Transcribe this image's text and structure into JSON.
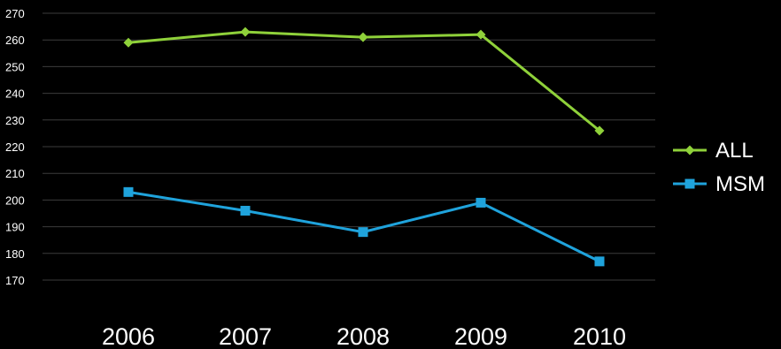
{
  "chart_data": {
    "type": "line",
    "categories": [
      "2006",
      "2007",
      "2008",
      "2009",
      "2010"
    ],
    "series": [
      {
        "name": "ALL",
        "values": [
          259,
          263,
          261,
          262,
          226
        ],
        "color": "#8fd13a",
        "marker": "diamond"
      },
      {
        "name": "MSM",
        "values": [
          203,
          196,
          188,
          199,
          177
        ],
        "color": "#1fa3dc",
        "marker": "square"
      }
    ],
    "y_ticks": [
      "270",
      "260",
      "250",
      "240",
      "230",
      "220",
      "210",
      "200",
      "190",
      "180",
      "170"
    ],
    "ylim": [
      170,
      270
    ],
    "grid": true,
    "legend_position": "right"
  }
}
